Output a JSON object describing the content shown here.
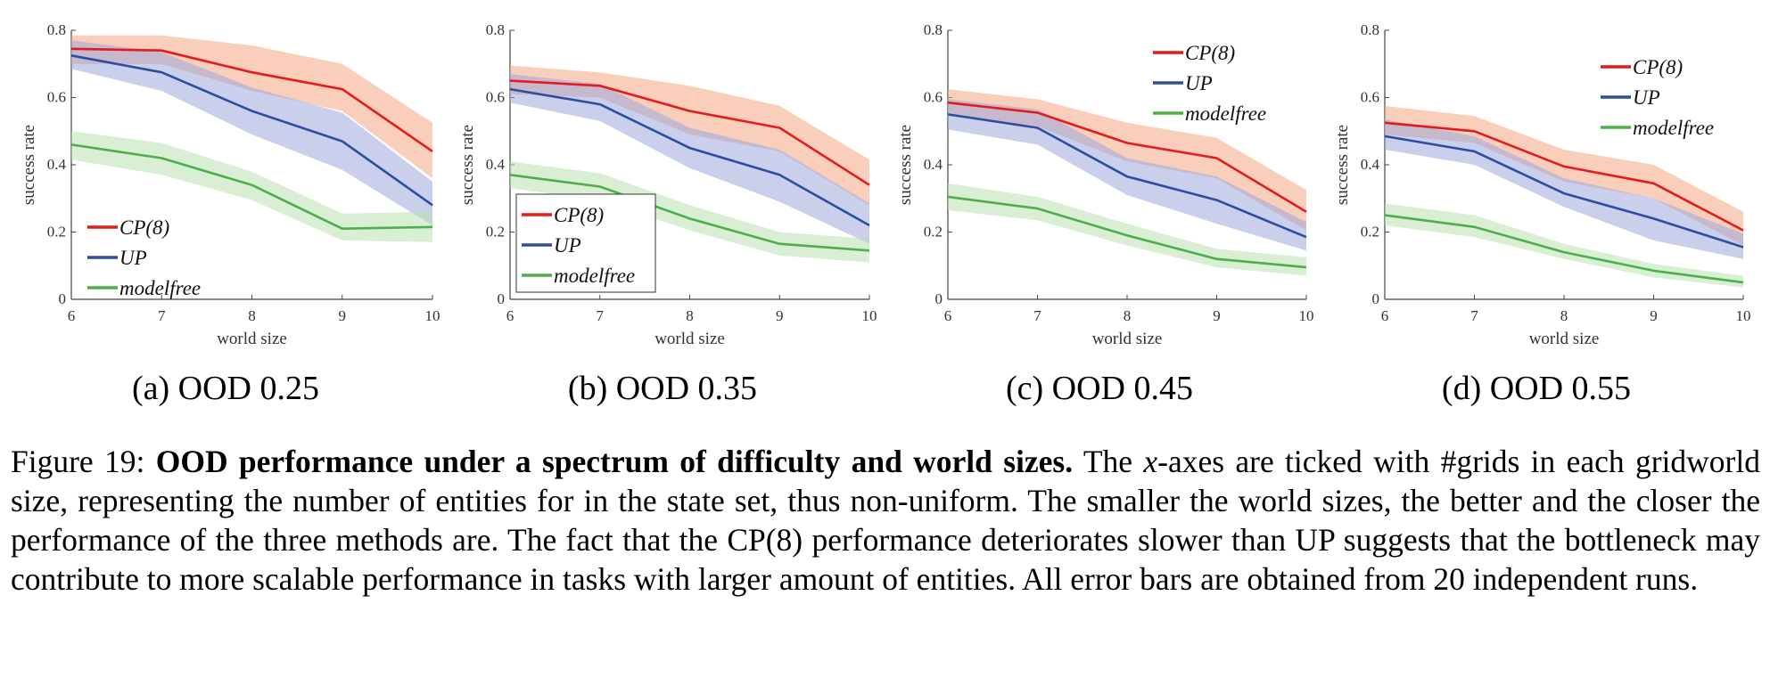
{
  "chart_data": [
    {
      "type": "line",
      "subcaption": "(a) OOD 0.25",
      "xlabel": "world size",
      "ylabel": "success rate",
      "x": [
        6,
        7,
        8,
        9,
        10
      ],
      "xlim": [
        6,
        10
      ],
      "ylim": [
        0,
        0.8
      ],
      "yticks": [
        "0",
        "0.2",
        "0.4",
        "0.6",
        "0.8"
      ],
      "xticks": [
        "6",
        "7",
        "8",
        "9",
        "10"
      ],
      "legend_placement": "bottom-left",
      "legend_boxed": false,
      "series": [
        {
          "name": "CP(8)",
          "color": "#e41a1c",
          "band_color": "#f4a582",
          "values": [
            0.745,
            0.74,
            0.675,
            0.625,
            0.44
          ],
          "lower": [
            0.7,
            0.7,
            0.62,
            0.56,
            0.36
          ],
          "upper": [
            0.785,
            0.785,
            0.755,
            0.7,
            0.525
          ]
        },
        {
          "name": "UP",
          "color": "#2d4ea0",
          "band_color": "#9fa8dc",
          "values": [
            0.725,
            0.675,
            0.56,
            0.47,
            0.28
          ],
          "lower": [
            0.685,
            0.62,
            0.49,
            0.385,
            0.22
          ],
          "upper": [
            0.77,
            0.735,
            0.63,
            0.555,
            0.35
          ]
        },
        {
          "name": "modelfree",
          "color": "#4daf4a",
          "band_color": "#b9e2ae",
          "values": [
            0.46,
            0.42,
            0.34,
            0.21,
            0.215
          ],
          "lower": [
            0.415,
            0.37,
            0.295,
            0.175,
            0.17
          ],
          "upper": [
            0.5,
            0.465,
            0.38,
            0.255,
            0.26
          ]
        }
      ]
    },
    {
      "type": "line",
      "subcaption": "(b) OOD 0.35",
      "xlabel": "world size",
      "ylabel": "success rate",
      "x": [
        6,
        7,
        8,
        9,
        10
      ],
      "xlim": [
        6,
        10
      ],
      "ylim": [
        0,
        0.8
      ],
      "yticks": [
        "0",
        "0.2",
        "0.4",
        "0.6",
        "0.8"
      ],
      "xticks": [
        "6",
        "7",
        "8",
        "9",
        "10"
      ],
      "legend_placement": "bottom-left",
      "legend_boxed": true,
      "series": [
        {
          "name": "CP(8)",
          "color": "#e41a1c",
          "band_color": "#f4a582",
          "values": [
            0.65,
            0.635,
            0.56,
            0.51,
            0.34
          ],
          "lower": [
            0.61,
            0.6,
            0.49,
            0.44,
            0.28
          ],
          "upper": [
            0.695,
            0.675,
            0.635,
            0.575,
            0.415
          ]
        },
        {
          "name": "UP",
          "color": "#2d4ea0",
          "band_color": "#9fa8dc",
          "values": [
            0.625,
            0.58,
            0.45,
            0.37,
            0.22
          ],
          "lower": [
            0.585,
            0.53,
            0.39,
            0.29,
            0.165
          ],
          "upper": [
            0.67,
            0.64,
            0.51,
            0.445,
            0.285
          ]
        },
        {
          "name": "modelfree",
          "color": "#4daf4a",
          "band_color": "#b9e2ae",
          "values": [
            0.37,
            0.335,
            0.24,
            0.165,
            0.145
          ],
          "lower": [
            0.33,
            0.295,
            0.205,
            0.13,
            0.11
          ],
          "upper": [
            0.41,
            0.375,
            0.28,
            0.2,
            0.18
          ]
        }
      ]
    },
    {
      "type": "line",
      "subcaption": "(c) OOD 0.45",
      "xlabel": "world size",
      "ylabel": "success rate",
      "x": [
        6,
        7,
        8,
        9,
        10
      ],
      "xlim": [
        6,
        10
      ],
      "ylim": [
        0,
        0.8
      ],
      "yticks": [
        "0",
        "0.2",
        "0.4",
        "0.6",
        "0.8"
      ],
      "xticks": [
        "6",
        "7",
        "8",
        "9",
        "10"
      ],
      "legend_placement": "top-right",
      "legend_boxed": false,
      "series": [
        {
          "name": "CP(8)",
          "color": "#e41a1c",
          "band_color": "#f4a582",
          "values": [
            0.585,
            0.555,
            0.465,
            0.42,
            0.26
          ],
          "lower": [
            0.545,
            0.515,
            0.41,
            0.36,
            0.205
          ],
          "upper": [
            0.625,
            0.595,
            0.525,
            0.48,
            0.325
          ]
        },
        {
          "name": "UP",
          "color": "#2d4ea0",
          "band_color": "#9fa8dc",
          "values": [
            0.55,
            0.51,
            0.365,
            0.295,
            0.185
          ],
          "lower": [
            0.505,
            0.46,
            0.31,
            0.225,
            0.145
          ],
          "upper": [
            0.595,
            0.565,
            0.42,
            0.365,
            0.23
          ]
        },
        {
          "name": "modelfree",
          "color": "#4daf4a",
          "band_color": "#b9e2ae",
          "values": [
            0.305,
            0.27,
            0.19,
            0.12,
            0.095
          ],
          "lower": [
            0.265,
            0.235,
            0.16,
            0.095,
            0.07
          ],
          "upper": [
            0.345,
            0.305,
            0.225,
            0.15,
            0.125
          ]
        }
      ]
    },
    {
      "type": "line",
      "subcaption": "(d) OOD 0.55",
      "xlabel": "world size",
      "ylabel": "success rate",
      "x": [
        6,
        7,
        8,
        9,
        10
      ],
      "xlim": [
        6,
        10
      ],
      "ylim": [
        0,
        0.8
      ],
      "yticks": [
        "0",
        "0.2",
        "0.4",
        "0.6",
        "0.8"
      ],
      "xticks": [
        "6",
        "7",
        "8",
        "9",
        "10"
      ],
      "legend_placement": "top-right",
      "legend_boxed": false,
      "series": [
        {
          "name": "CP(8)",
          "color": "#e41a1c",
          "band_color": "#f4a582",
          "values": [
            0.525,
            0.5,
            0.395,
            0.345,
            0.205
          ],
          "lower": [
            0.49,
            0.465,
            0.35,
            0.3,
            0.16
          ],
          "upper": [
            0.575,
            0.545,
            0.445,
            0.4,
            0.26
          ]
        },
        {
          "name": "UP",
          "color": "#2d4ea0",
          "band_color": "#9fa8dc",
          "values": [
            0.485,
            0.44,
            0.315,
            0.24,
            0.155
          ],
          "lower": [
            0.445,
            0.4,
            0.275,
            0.175,
            0.12
          ],
          "upper": [
            0.535,
            0.485,
            0.36,
            0.3,
            0.195
          ]
        },
        {
          "name": "modelfree",
          "color": "#4daf4a",
          "band_color": "#b9e2ae",
          "values": [
            0.25,
            0.215,
            0.14,
            0.085,
            0.05
          ],
          "lower": [
            0.22,
            0.185,
            0.12,
            0.065,
            0.035
          ],
          "upper": [
            0.285,
            0.25,
            0.165,
            0.105,
            0.07
          ]
        }
      ]
    }
  ],
  "caption": {
    "label": "Figure 19:",
    "title": "OOD performance under a spectrum of difficulty and world sizes.",
    "text_before_math": "The",
    "math_symbol": "x",
    "text_after_math": "-axes are ticked with #grids in each gridworld size, representing the number of entities for in the state set, thus non-uniform. The smaller the world sizes, the better and the closer the performance of the three methods are. The fact that the CP(8) performance deteriorates slower than UP suggests that the bottleneck may contribute to more scalable performance in tasks with larger amount of entities. All error bars are obtained from 20 independent runs."
  }
}
